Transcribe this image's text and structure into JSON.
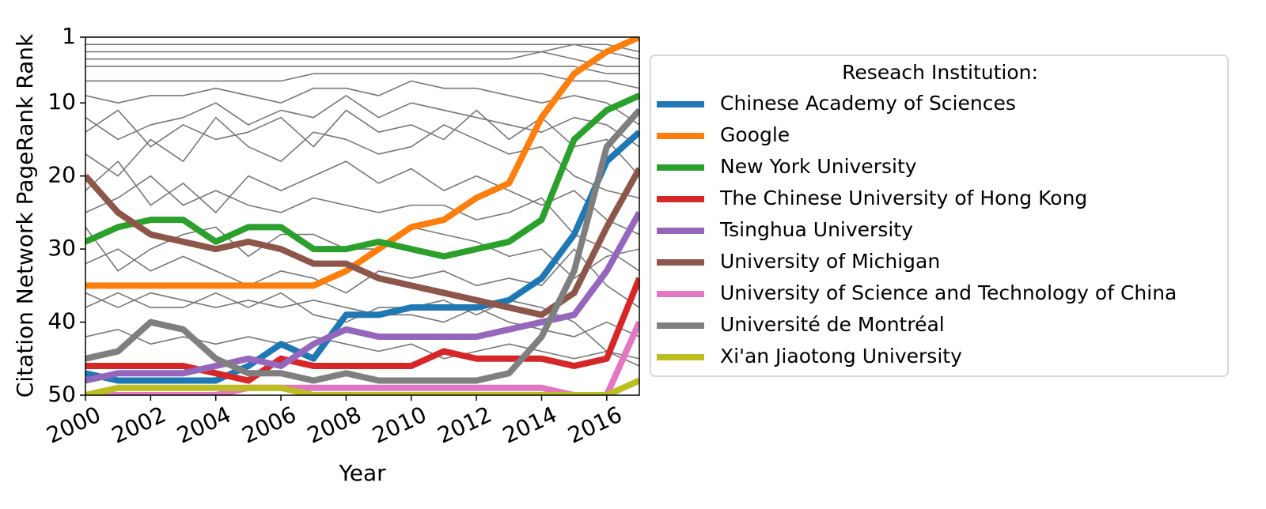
{
  "chart_data": {
    "type": "line",
    "xlabel": "Year",
    "ylabel": "Citation Network PageRank Rank",
    "legend_title": "Reseach Institution:",
    "legend": "outside-right",
    "x": [
      2000,
      2001,
      2002,
      2003,
      2004,
      2005,
      2006,
      2007,
      2008,
      2009,
      2010,
      2011,
      2012,
      2013,
      2014,
      2015,
      2016,
      2017
    ],
    "xlim": [
      2000,
      2017
    ],
    "xticks": [
      2000,
      2002,
      2004,
      2006,
      2008,
      2010,
      2012,
      2014,
      2016
    ],
    "ylim": [
      1,
      50
    ],
    "yticks": [
      1,
      10,
      20,
      30,
      40,
      50
    ],
    "invert_y": true,
    "series": [
      {
        "color": "#777777",
        "values": [
          2,
          2,
          2,
          2,
          2,
          2,
          2,
          2,
          2,
          2,
          2,
          2,
          2,
          2,
          2,
          2,
          2,
          3
        ]
      },
      {
        "color": "#777777",
        "values": [
          3,
          3,
          3,
          3,
          3,
          3,
          3,
          3,
          3,
          3,
          3,
          3,
          3,
          3,
          3,
          2,
          3,
          4
        ]
      },
      {
        "color": "#777777",
        "values": [
          4,
          4,
          4,
          4,
          4,
          4,
          4,
          4,
          4,
          4,
          4,
          4,
          4,
          4,
          3,
          4,
          5,
          5
        ]
      },
      {
        "color": "#777777",
        "values": [
          5,
          5,
          5,
          5,
          5,
          5,
          5,
          5,
          5,
          5,
          5,
          5,
          5,
          5,
          5,
          5,
          6,
          6
        ]
      },
      {
        "color": "#777777",
        "values": [
          7,
          7,
          7,
          7,
          7,
          7,
          7,
          6,
          6,
          6,
          6,
          6,
          6,
          6,
          6,
          7,
          7,
          8
        ]
      },
      {
        "color": "#777777",
        "values": [
          9,
          10,
          9,
          9,
          8,
          9,
          10,
          8,
          8,
          9,
          7,
          8,
          8,
          9,
          10,
          9,
          10,
          13
        ]
      },
      {
        "color": "#777777",
        "values": [
          12,
          15,
          13,
          12,
          10,
          13,
          11,
          12,
          9,
          12,
          10,
          11,
          12,
          13,
          14,
          12,
          13,
          16
        ]
      },
      {
        "color": "#777777",
        "values": [
          14,
          11,
          16,
          13,
          15,
          14,
          12,
          16,
          11,
          14,
          13,
          15,
          11,
          15,
          12,
          16,
          15,
          20
        ]
      },
      {
        "color": "#777777",
        "values": [
          17,
          20,
          15,
          18,
          12,
          16,
          18,
          14,
          15,
          17,
          16,
          13,
          15,
          17,
          16,
          20,
          22,
          23
        ]
      },
      {
        "color": "#777777",
        "values": [
          22,
          18,
          24,
          21,
          25,
          20,
          22,
          20,
          18,
          21,
          19,
          22,
          20,
          22,
          24,
          22,
          26,
          28
        ]
      },
      {
        "color": "#777777",
        "values": [
          25,
          23,
          20,
          24,
          22,
          24,
          25,
          23,
          24,
          25,
          24,
          24,
          26,
          25,
          23,
          28,
          30,
          33
        ]
      },
      {
        "color": "#777777",
        "values": [
          32,
          30,
          33,
          31,
          33,
          35,
          33,
          34,
          36,
          33,
          34,
          33,
          35,
          34,
          35,
          30,
          35,
          38
        ]
      },
      {
        "color": "#777777",
        "values": [
          36,
          38,
          36,
          37,
          38,
          37,
          38,
          37,
          38,
          39,
          39,
          40,
          38,
          40,
          41,
          42,
          40,
          42
        ]
      },
      {
        "color": "#777777",
        "values": [
          42,
          41,
          43,
          42,
          43,
          42,
          43,
          42,
          43,
          44,
          43,
          45,
          44,
          43,
          44,
          45,
          44,
          46
        ]
      },
      {
        "color": "#777777",
        "values": [
          38,
          36,
          38,
          38,
          36,
          38,
          36,
          39,
          40,
          38,
          38,
          37,
          39,
          37,
          38,
          40,
          44,
          45
        ]
      },
      {
        "color": "#777777",
        "values": [
          27,
          33,
          30,
          28,
          27,
          31,
          28,
          28,
          30,
          30,
          27,
          28,
          29,
          31,
          30,
          34,
          31,
          30
        ]
      },
      {
        "name": "Chinese Academy of Sciences",
        "color": "#1f77b4",
        "values": [
          47,
          48,
          48,
          48,
          48,
          46,
          43,
          45,
          39,
          39,
          38,
          38,
          38,
          37,
          34,
          28,
          18,
          14
        ]
      },
      {
        "name": "Google",
        "color": "#ff7f0e",
        "values": [
          35,
          35,
          35,
          35,
          35,
          35,
          35,
          35,
          33,
          30,
          27,
          26,
          23,
          21,
          12,
          6,
          3,
          1
        ]
      },
      {
        "name": "New York University",
        "color": "#2ca02c",
        "values": [
          29,
          27,
          26,
          26,
          29,
          27,
          27,
          30,
          30,
          29,
          30,
          31,
          30,
          29,
          26,
          15,
          11,
          9
        ]
      },
      {
        "name": "The Chinese University of Hong Kong",
        "color": "#d62728",
        "values": [
          46,
          46,
          46,
          46,
          47,
          48,
          45,
          46,
          46,
          46,
          46,
          44,
          45,
          45,
          45,
          46,
          45,
          34
        ]
      },
      {
        "name": "Tsinghua University",
        "color": "#9467bd",
        "values": [
          48,
          47,
          47,
          47,
          46,
          45,
          46,
          43,
          41,
          42,
          42,
          42,
          42,
          41,
          40,
          39,
          33,
          25
        ]
      },
      {
        "name": "University of Michigan",
        "color": "#8c564b",
        "values": [
          20,
          25,
          28,
          29,
          30,
          29,
          30,
          32,
          32,
          34,
          35,
          36,
          37,
          38,
          39,
          36,
          27,
          19
        ]
      },
      {
        "name": "University of Science and Technology of China",
        "color": "#e377c2",
        "values": [
          50,
          50,
          50,
          50,
          50,
          49,
          49,
          49,
          49,
          49,
          49,
          49,
          49,
          49,
          49,
          50,
          50,
          40
        ]
      },
      {
        "name": "Université de Montréal",
        "color": "#7f7f7f",
        "values": [
          45,
          44,
          40,
          41,
          45,
          47,
          47,
          48,
          47,
          48,
          48,
          48,
          48,
          47,
          42,
          33,
          16,
          11
        ]
      },
      {
        "name": "Xi'an Jiaotong University",
        "color": "#bcbd22",
        "values": [
          50,
          49,
          49,
          49,
          49,
          49,
          49,
          50,
          50,
          50,
          50,
          50,
          50,
          50,
          50,
          50,
          50,
          48
        ]
      }
    ]
  }
}
